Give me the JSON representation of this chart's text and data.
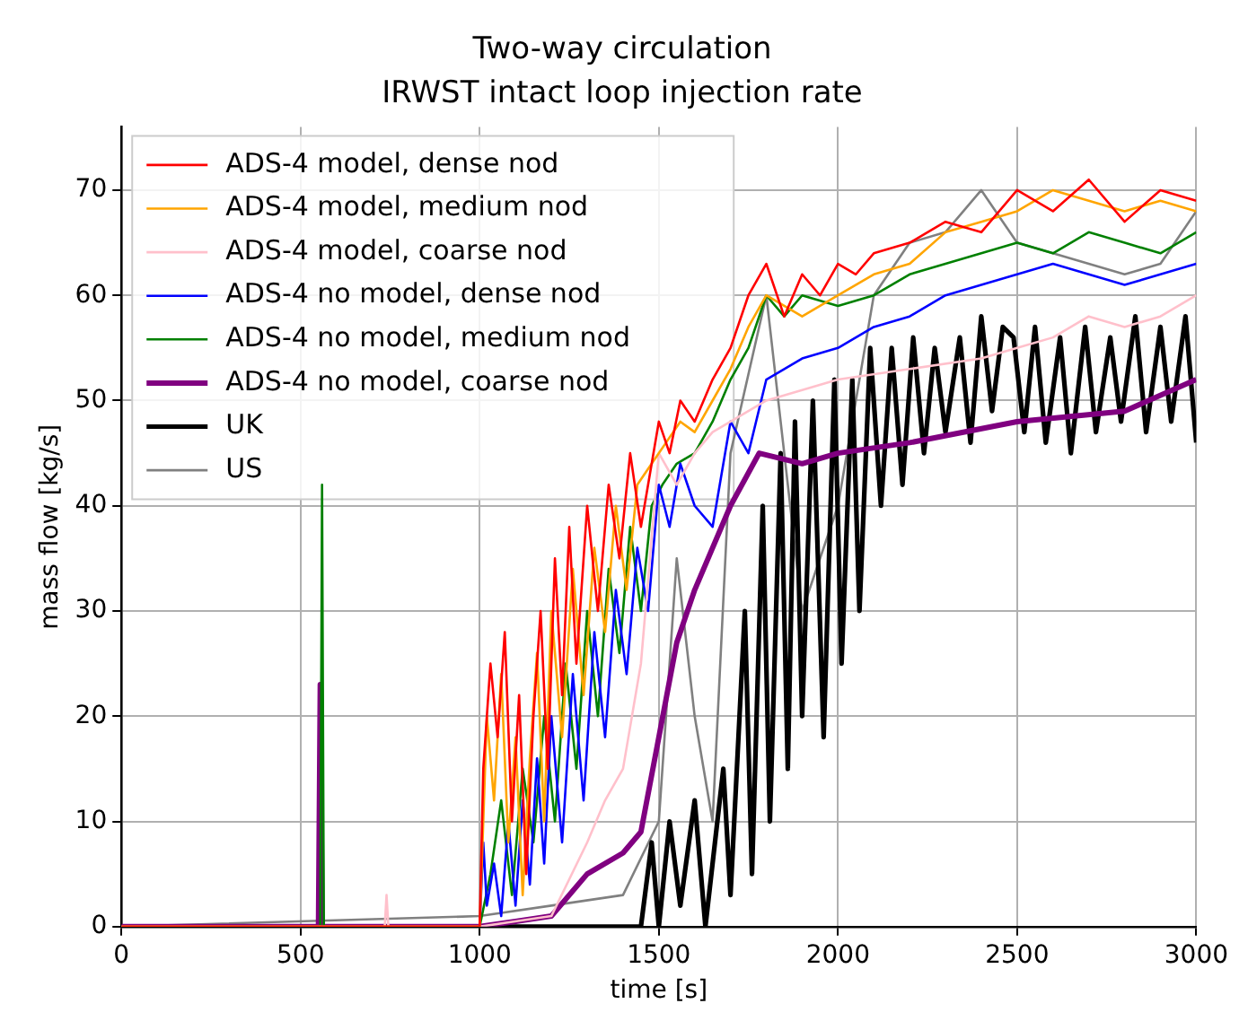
{
  "chart_data": {
    "type": "line",
    "title": "Two-way circulation",
    "subtitle": "IRWST intact loop injection rate",
    "xlabel": "time [s]",
    "ylabel": "mass flow [kg/s]",
    "xlim": [
      0,
      3000
    ],
    "xticks": [
      0,
      500,
      1000,
      1500,
      2000,
      2500,
      3000
    ],
    "ylim": [
      0,
      76
    ],
    "yticks": [
      0,
      10,
      20,
      30,
      40,
      50,
      60,
      70
    ],
    "grid": true,
    "legend": "top left",
    "marker": "none",
    "line_style": "solid",
    "series": [
      {
        "name": "ADS-4 model, dense nod",
        "color": "#ff0000",
        "x": [
          0,
          1000,
          1010,
          1030,
          1050,
          1070,
          1090,
          1110,
          1130,
          1150,
          1170,
          1190,
          1210,
          1230,
          1250,
          1270,
          1300,
          1330,
          1360,
          1390,
          1420,
          1450,
          1500,
          1530,
          1560,
          1600,
          1650,
          1700,
          1750,
          1800,
          1850,
          1900,
          1950,
          2000,
          2050,
          2100,
          2200,
          2300,
          2400,
          2500,
          2600,
          2700,
          2800,
          2900,
          3000
        ],
        "values": [
          0,
          0,
          15,
          25,
          18,
          28,
          10,
          22,
          5,
          20,
          30,
          15,
          35,
          22,
          38,
          25,
          40,
          30,
          42,
          35,
          45,
          38,
          48,
          45,
          50,
          48,
          52,
          55,
          60,
          63,
          58,
          62,
          60,
          63,
          62,
          64,
          65,
          67,
          66,
          70,
          68,
          71,
          67,
          70,
          69
        ]
      },
      {
        "name": "ADS-4 model, medium nod",
        "color": "#ffa500",
        "x": [
          0,
          1000,
          1020,
          1040,
          1060,
          1080,
          1100,
          1120,
          1140,
          1160,
          1180,
          1200,
          1230,
          1260,
          1290,
          1320,
          1350,
          1380,
          1410,
          1440,
          1480,
          1520,
          1560,
          1600,
          1650,
          1700,
          1750,
          1800,
          1900,
          2000,
          2100,
          2200,
          2300,
          2400,
          2500,
          2600,
          2700,
          2800,
          2900,
          3000
        ],
        "values": [
          0,
          0,
          20,
          12,
          24,
          8,
          18,
          3,
          16,
          26,
          10,
          30,
          18,
          34,
          22,
          36,
          28,
          40,
          32,
          42,
          44,
          46,
          48,
          47,
          50,
          53,
          57,
          60,
          58,
          60,
          62,
          63,
          66,
          67,
          68,
          70,
          69,
          68,
          69,
          68
        ]
      },
      {
        "name": "ADS-4 model, coarse nod",
        "color": "#ffc0cb",
        "x": [
          0,
          735,
          740,
          745,
          1000,
          1200,
          1300,
          1350,
          1400,
          1450,
          1500,
          1550,
          1600,
          1650,
          1700,
          1800,
          2000,
          2200,
          2400,
          2500,
          2600,
          2700,
          2800,
          2900,
          3000
        ],
        "values": [
          0,
          0,
          3,
          0,
          0,
          1,
          8,
          12,
          15,
          25,
          45,
          42,
          45,
          47,
          48,
          50,
          52,
          53,
          54,
          55,
          56,
          58,
          57,
          58,
          60
        ]
      },
      {
        "name": "ADS-4 no model, dense nod",
        "color": "#0000ff",
        "x": [
          0,
          1000,
          1010,
          1020,
          1040,
          1060,
          1080,
          1100,
          1120,
          1140,
          1160,
          1180,
          1200,
          1230,
          1260,
          1290,
          1320,
          1350,
          1380,
          1410,
          1440,
          1470,
          1500,
          1530,
          1560,
          1600,
          1650,
          1700,
          1750,
          1800,
          1850,
          1900,
          2000,
          2100,
          2200,
          2300,
          2400,
          2500,
          2600,
          2700,
          2800,
          2900,
          3000
        ],
        "values": [
          0,
          0,
          8,
          2,
          6,
          1,
          10,
          2,
          12,
          4,
          16,
          6,
          20,
          8,
          24,
          12,
          28,
          18,
          32,
          24,
          36,
          30,
          42,
          38,
          44,
          40,
          38,
          48,
          45,
          52,
          53,
          54,
          55,
          57,
          58,
          60,
          61,
          62,
          63,
          62,
          61,
          62,
          63
        ]
      },
      {
        "name": "ADS-4 no model, medium nod",
        "color": "#008000",
        "x": [
          0,
          555,
          560,
          565,
          1000,
          1030,
          1060,
          1090,
          1120,
          1150,
          1180,
          1210,
          1240,
          1270,
          1300,
          1330,
          1360,
          1390,
          1420,
          1450,
          1480,
          1510,
          1550,
          1600,
          1650,
          1700,
          1750,
          1800,
          1850,
          1900,
          2000,
          2100,
          2200,
          2300,
          2400,
          2500,
          2600,
          2700,
          2800,
          2900,
          3000
        ],
        "values": [
          0,
          0,
          42,
          0,
          0,
          5,
          12,
          3,
          15,
          8,
          20,
          10,
          25,
          15,
          30,
          20,
          34,
          26,
          38,
          30,
          40,
          42,
          44,
          45,
          48,
          52,
          55,
          60,
          58,
          60,
          59,
          60,
          62,
          63,
          64,
          65,
          64,
          66,
          65,
          64,
          66
        ]
      },
      {
        "name": "ADS-4 no model, coarse nod",
        "color": "#800080",
        "x": [
          0,
          550,
          555,
          560,
          1000,
          1100,
          1200,
          1300,
          1400,
          1450,
          1500,
          1550,
          1600,
          1650,
          1700,
          1780,
          1900,
          2000,
          2200,
          2500,
          2800,
          3000
        ],
        "values": [
          0,
          0,
          23,
          0,
          0,
          0.5,
          1,
          5,
          7,
          9,
          18,
          27,
          32,
          36,
          40,
          45,
          44,
          45,
          46,
          48,
          49,
          52
        ]
      },
      {
        "name": "UK",
        "color": "#000000",
        "x": [
          0,
          1450,
          1480,
          1500,
          1530,
          1560,
          1600,
          1630,
          1680,
          1700,
          1740,
          1760,
          1790,
          1810,
          1840,
          1860,
          1880,
          1900,
          1930,
          1960,
          1990,
          2010,
          2040,
          2060,
          2090,
          2120,
          2150,
          2180,
          2210,
          2240,
          2270,
          2300,
          2340,
          2370,
          2400,
          2430,
          2460,
          2490,
          2520,
          2550,
          2580,
          2620,
          2650,
          2690,
          2720,
          2760,
          2790,
          2830,
          2860,
          2900,
          2930,
          2970,
          3000
        ],
        "values": [
          0,
          0,
          8,
          0,
          10,
          2,
          12,
          0,
          15,
          3,
          30,
          5,
          40,
          10,
          45,
          15,
          48,
          20,
          50,
          18,
          52,
          25,
          52,
          30,
          55,
          40,
          55,
          42,
          56,
          45,
          55,
          47,
          56,
          46,
          58,
          49,
          57,
          56,
          47,
          57,
          46,
          56,
          45,
          57,
          47,
          56,
          48,
          58,
          47,
          57,
          48,
          58,
          46
        ]
      },
      {
        "name": "US",
        "color": "#808080",
        "x": [
          0,
          1000,
          1200,
          1400,
          1500,
          1550,
          1600,
          1650,
          1700,
          1800,
          1850,
          1900,
          2000,
          2100,
          2200,
          2300,
          2400,
          2500,
          2600,
          2700,
          2800,
          2900,
          3000
        ],
        "values": [
          0,
          1,
          2,
          3,
          10,
          35,
          20,
          10,
          45,
          60,
          45,
          30,
          40,
          60,
          65,
          66,
          70,
          65,
          64,
          63,
          62,
          63,
          68
        ]
      }
    ]
  }
}
